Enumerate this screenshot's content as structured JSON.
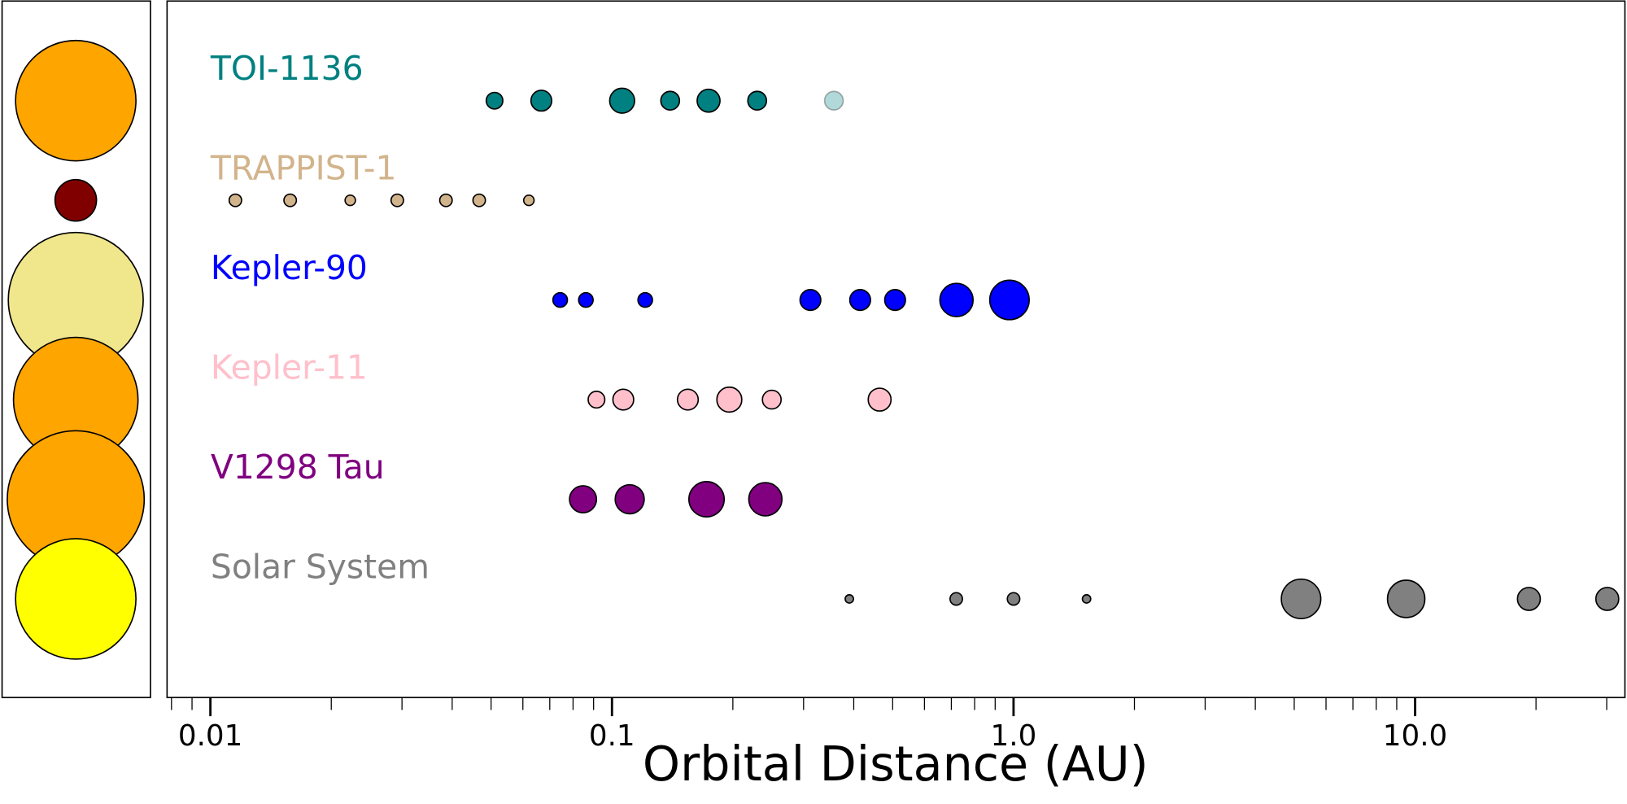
{
  "chart_data": {
    "type": "scatter",
    "x_label": "Orbital Distance (AU)",
    "log_x": true,
    "xlim": [
      0.0078,
      33.3
    ],
    "xticks": [
      0.01,
      0.1,
      {
        "value": 1,
        "label": "1.0"
      },
      {
        "value": 10,
        "label": "10.0"
      }
    ],
    "xminor_ticks": [
      0.008,
      0.009,
      0.02,
      0.03,
      0.04,
      0.05,
      0.06,
      0.07,
      0.08,
      0.09,
      0.2,
      0.3,
      0.4,
      0.5,
      0.6,
      0.7,
      0.8,
      0.9,
      2,
      3,
      4,
      5,
      6,
      7,
      8,
      9,
      20,
      30
    ],
    "series": [
      {
        "name": "TOI-1136",
        "color": "#008080",
        "star_color": "#ffa500",
        "star_size": 58,
        "x": [
          0.051,
          0.0667,
          0.106,
          0.1396,
          0.174,
          0.2299,
          0.357
        ],
        "sizes": [
          8,
          10,
          12,
          9,
          11,
          9,
          9
        ],
        "alphas": [
          1,
          1,
          1,
          1,
          1,
          1,
          0.3
        ]
      },
      {
        "name": "TRAPPIST-1",
        "color": "#d2b48c",
        "star_color": "#800000",
        "star_size": 20,
        "x": [
          0.01154,
          0.0158,
          0.0223,
          0.0292,
          0.0386,
          0.0467,
          0.0621
        ],
        "sizes": [
          6,
          6,
          5,
          6,
          6,
          6,
          5
        ]
      },
      {
        "name": "Kepler-90",
        "color": "#0000ff",
        "star_color": "#f0e68c",
        "star_size": 65,
        "x": [
          0.0743,
          0.0861,
          0.121,
          0.312,
          0.415,
          0.507,
          0.721,
          0.977
        ],
        "sizes": [
          7,
          7,
          7,
          10,
          10,
          10,
          16,
          19
        ]
      },
      {
        "name": "Kepler-11",
        "color": "#ffc0cb",
        "star_color": "#ffa500",
        "star_size": 60,
        "x": [
          0.0915,
          0.1067,
          0.1545,
          0.196,
          0.25,
          0.464
        ],
        "sizes": [
          8,
          10,
          10,
          12,
          9,
          11
        ]
      },
      {
        "name": "V1298 Tau",
        "color": "#800080",
        "star_color": "#ffa500",
        "star_size": 66,
        "x": [
          0.0847,
          0.1107,
          0.172,
          0.241
        ],
        "sizes": [
          13,
          14,
          17,
          16
        ]
      },
      {
        "name": "Solar System",
        "color": "#808080",
        "star_color": "#ffff00",
        "star_size": 58,
        "x": [
          0.39,
          0.72,
          1,
          1.52,
          5.2,
          9.5,
          19.2,
          30.1
        ],
        "sizes": [
          4,
          6,
          6,
          4,
          19,
          18,
          11,
          11
        ]
      }
    ]
  }
}
